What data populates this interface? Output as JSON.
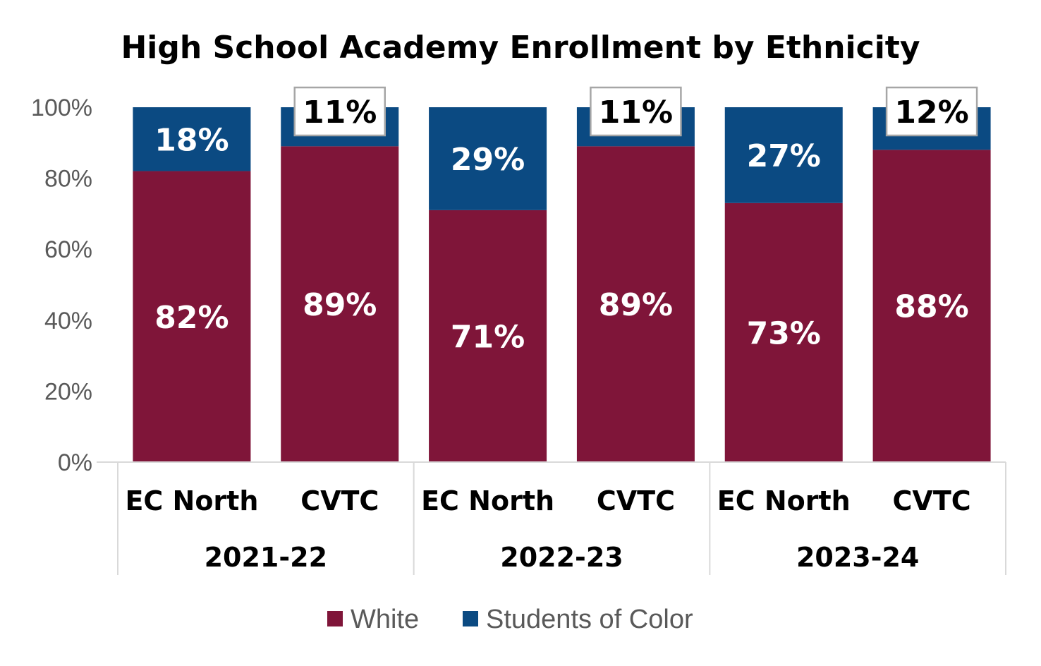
{
  "chart_data": {
    "type": "bar",
    "stacked": true,
    "title": "High School Academy Enrollment by Ethnicity",
    "ylim": [
      0,
      100
    ],
    "yticks": [
      "0%",
      "20%",
      "40%",
      "60%",
      "80%",
      "100%"
    ],
    "groups": [
      "2021-22",
      "2022-23",
      "2023-24"
    ],
    "categories": [
      "EC North",
      "CVTC",
      "EC North",
      "CVTC",
      "EC North",
      "CVTC"
    ],
    "series": [
      {
        "name": "White",
        "color": "#7F1539",
        "values": [
          82,
          89,
          71,
          89,
          73,
          88
        ]
      },
      {
        "name": "Students of Color",
        "color": "#0B4A82",
        "values": [
          18,
          11,
          29,
          11,
          27,
          12
        ]
      }
    ],
    "data_labels": {
      "White": [
        "82%",
        "89%",
        "71%",
        "89%",
        "73%",
        "88%"
      ],
      "Students of Color": [
        "18%",
        "11%",
        "29%",
        "11%",
        "27%",
        "12%"
      ]
    },
    "callout_boxed": [
      false,
      true,
      false,
      true,
      false,
      true
    ],
    "legend_position": "bottom",
    "grid": false
  }
}
